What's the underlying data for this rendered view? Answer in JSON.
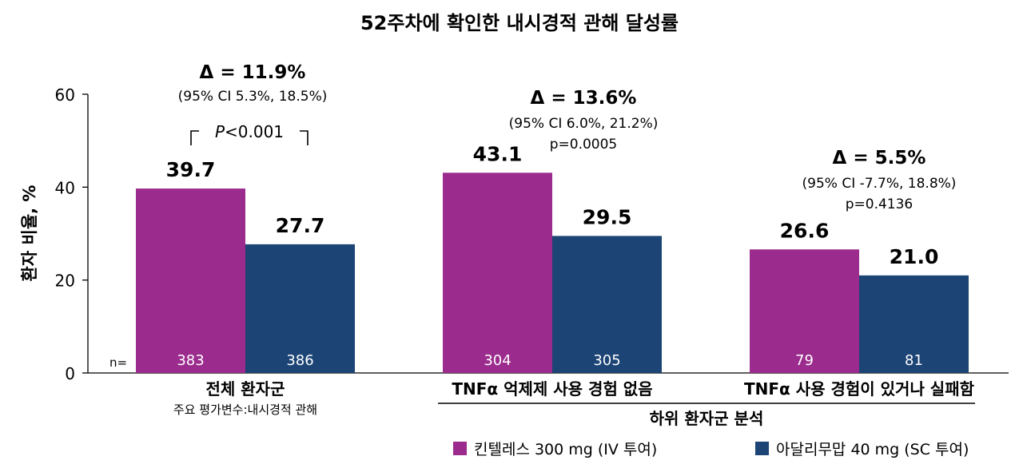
{
  "chart_data": {
    "type": "bar",
    "title": "52주차에 확인한 내시경적 관해 달성률",
    "ylabel": "환자 비율, %",
    "ylim": [
      0,
      60
    ],
    "yticks": [
      "0",
      "20",
      "40",
      "60"
    ],
    "groups": [
      {
        "label": "전체 환자군",
        "sublabel": "주요 평가변수:내시경적 관해",
        "values": [
          39.7,
          27.7
        ],
        "value_labels": [
          "39.7",
          "27.7"
        ],
        "n": [
          "383",
          "386"
        ],
        "delta": "Δ = 11.9%",
        "ci": "(95% CI 5.3%, 18.5%)",
        "p": "<0.001",
        "p_prefix": "P"
      },
      {
        "label": "TNFα 억제제 사용 경험 없음",
        "values": [
          43.1,
          29.5
        ],
        "value_labels": [
          "43.1",
          "29.5"
        ],
        "n": [
          "304",
          "305"
        ],
        "delta": "Δ = 13.6%",
        "ci": "(95% CI 6.0%, 21.2%)",
        "p": "p=0.0005"
      },
      {
        "label": "TNFα 사용 경험이 있거나 실패함",
        "values": [
          26.6,
          21.0
        ],
        "value_labels": [
          "26.6",
          "21.0"
        ],
        "n": [
          "79",
          "81"
        ],
        "delta": "Δ = 5.5%",
        "ci": "(95% CI -7.7%, 18.8%)",
        "p": "p=0.4136"
      }
    ],
    "series": [
      {
        "name": "킨텔레스 300 mg (IV 투여)",
        "color": "#9b2b8d"
      },
      {
        "name": "아달리무맙 40 mg (SC 투여)",
        "color": "#1c4475"
      }
    ],
    "n_label": "n=",
    "subgroup_label": "하위 환자군 분석",
    "grid": false,
    "legend_position": "bottom-right"
  }
}
